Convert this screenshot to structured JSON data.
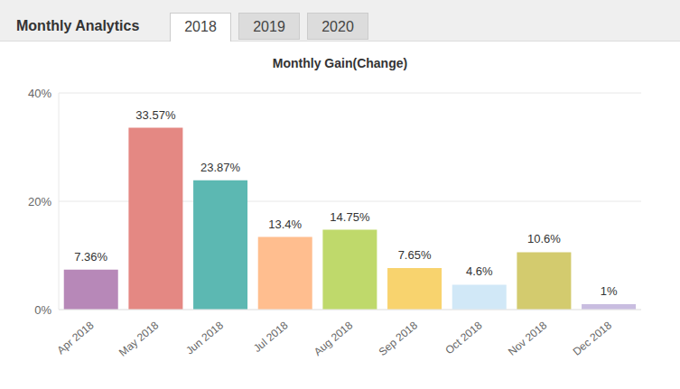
{
  "header": {
    "title": "Monthly Analytics",
    "tabs": [
      "2018",
      "2019",
      "2020"
    ],
    "active_tab": "2018"
  },
  "chart_data": {
    "type": "bar",
    "title": "Monthly Gain(Change)",
    "categories": [
      "Apr 2018",
      "May 2018",
      "Jun 2018",
      "Jul 2018",
      "Aug 2018",
      "Sep 2018",
      "Oct 2018",
      "Nov 2018",
      "Dec 2018"
    ],
    "values": [
      7.36,
      33.57,
      23.87,
      13.4,
      14.75,
      7.65,
      4.6,
      10.6,
      1
    ],
    "value_labels": [
      "7.36%",
      "33.57%",
      "23.87%",
      "13.4%",
      "14.75%",
      "7.65%",
      "4.6%",
      "10.6%",
      "1%"
    ],
    "colors": [
      "#b788b8",
      "#e48883",
      "#5cb8b2",
      "#ffbe8f",
      "#bfd96b",
      "#f8d36e",
      "#d1e8f7",
      "#d3cb6e",
      "#c9bde0"
    ],
    "ylim": [
      0,
      40
    ],
    "yticks": [
      {
        "value": 0,
        "label": "0%"
      },
      {
        "value": 20,
        "label": "20%"
      },
      {
        "value": 40,
        "label": "40%"
      }
    ],
    "grid": true,
    "data_labels": true
  }
}
